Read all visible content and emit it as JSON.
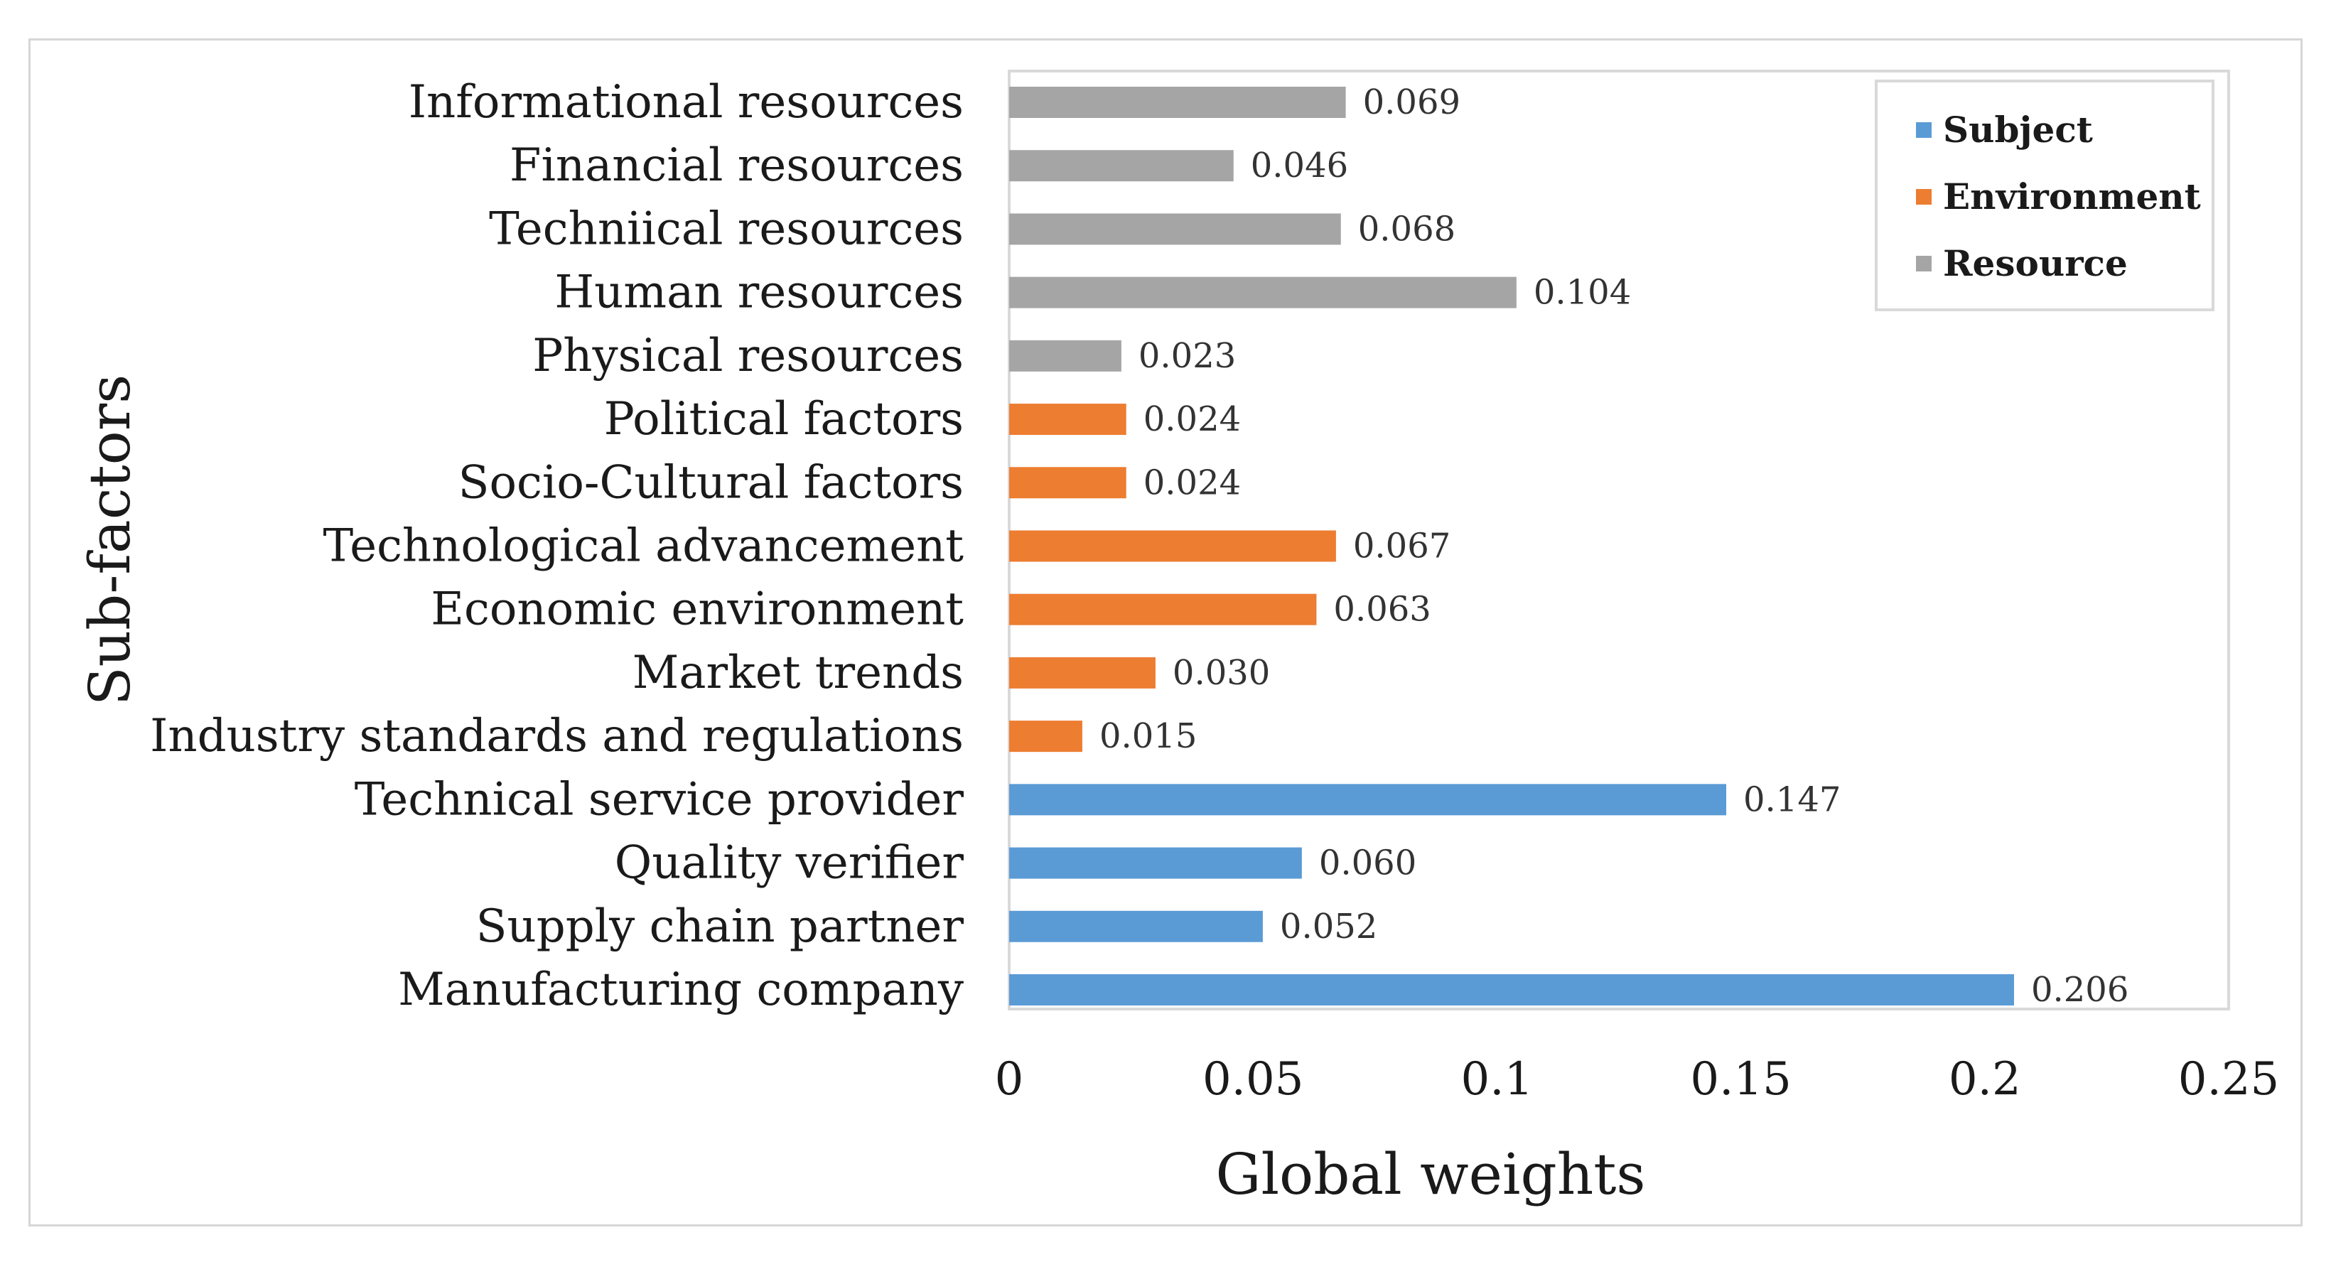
{
  "chart_data": {
    "type": "bar",
    "orientation": "horizontal",
    "xlabel": "Global weights",
    "ylabel": "Sub-factors",
    "xlim": [
      0,
      0.25
    ],
    "xticks": [
      0,
      0.05,
      0.1,
      0.15,
      0.2,
      0.25
    ],
    "xtick_labels": [
      "0",
      "0.05",
      "0.1",
      "0.15",
      "0.2",
      "0.25"
    ],
    "grid": false,
    "legend_position": "top-right",
    "series": [
      {
        "name": "Subject",
        "color": "#5b9bd5"
      },
      {
        "name": "Environment",
        "color": "#ed7d31"
      },
      {
        "name": "Resource",
        "color": "#a5a5a5"
      }
    ],
    "bars": [
      {
        "category": "Informational resources",
        "value": 0.069,
        "label": "0.069",
        "series": "Resource"
      },
      {
        "category": "Financial resources",
        "value": 0.046,
        "label": "0.046",
        "series": "Resource"
      },
      {
        "category": "Techniical resources",
        "value": 0.068,
        "label": "0.068",
        "series": "Resource"
      },
      {
        "category": "Human resources",
        "value": 0.104,
        "label": "0.104",
        "series": "Resource"
      },
      {
        "category": "Physical resources",
        "value": 0.023,
        "label": "0.023",
        "series": "Resource"
      },
      {
        "category": "Political factors",
        "value": 0.024,
        "label": "0.024",
        "series": "Environment"
      },
      {
        "category": "Socio-Cultural factors",
        "value": 0.024,
        "label": "0.024",
        "series": "Environment"
      },
      {
        "category": "Technological advancement",
        "value": 0.067,
        "label": "0.067",
        "series": "Environment"
      },
      {
        "category": "Economic environment",
        "value": 0.063,
        "label": "0.063",
        "series": "Environment"
      },
      {
        "category": "Market trends",
        "value": 0.03,
        "label": "0.030",
        "series": "Environment"
      },
      {
        "category": "Industry standards and regulations",
        "value": 0.015,
        "label": "0.015",
        "series": "Environment"
      },
      {
        "category": "Technical service provider",
        "value": 0.147,
        "label": "0.147",
        "series": "Subject"
      },
      {
        "category": "Quality verifier",
        "value": 0.06,
        "label": "0.060",
        "series": "Subject"
      },
      {
        "category": "Supply chain partner",
        "value": 0.052,
        "label": "0.052",
        "series": "Subject"
      },
      {
        "category": "Manufacturing company",
        "value": 0.206,
        "label": "0.206",
        "series": "Subject"
      }
    ]
  }
}
